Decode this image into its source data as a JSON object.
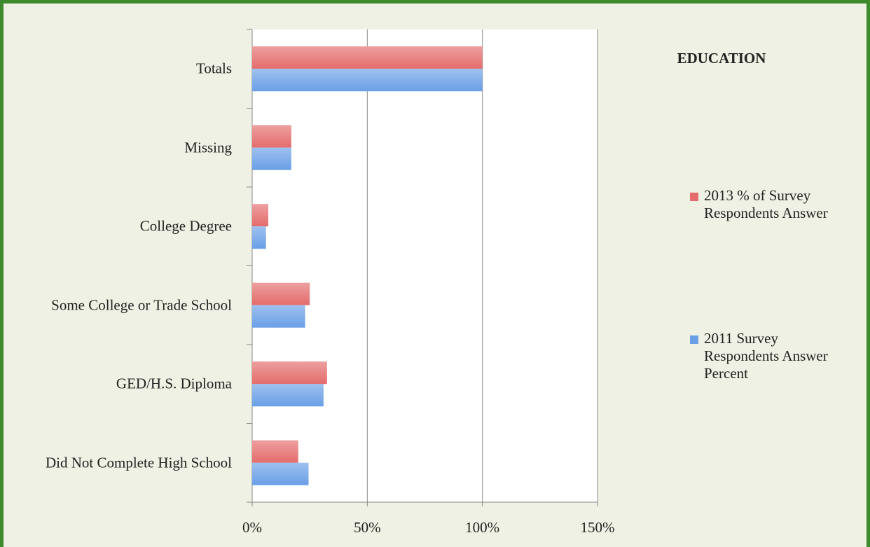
{
  "chart_data": {
    "type": "bar",
    "orientation": "horizontal",
    "title": "EDUCATION",
    "categories": [
      "Totals",
      "Missing",
      "College Degree",
      "Some College or Trade School",
      "GED/H.S. Diploma",
      "Did Not Complete High School"
    ],
    "series": [
      {
        "name": "2013 % of Survey Respondents Answer",
        "color": "#e46c6c",
        "values": [
          100,
          17,
          7,
          25,
          32.5,
          20
        ]
      },
      {
        "name": "2011 Survey Respondents Answer Percent",
        "color": "#6a9fe6",
        "values": [
          100,
          17,
          6,
          23,
          31,
          24.5
        ]
      }
    ],
    "xlim": [
      0,
      150
    ],
    "xticks": [
      {
        "value": 0,
        "label": "0%"
      },
      {
        "value": 50,
        "label": "50%"
      },
      {
        "value": 100,
        "label": "100%"
      },
      {
        "value": 150,
        "label": "150%"
      }
    ],
    "grid": true,
    "legend": "right"
  }
}
